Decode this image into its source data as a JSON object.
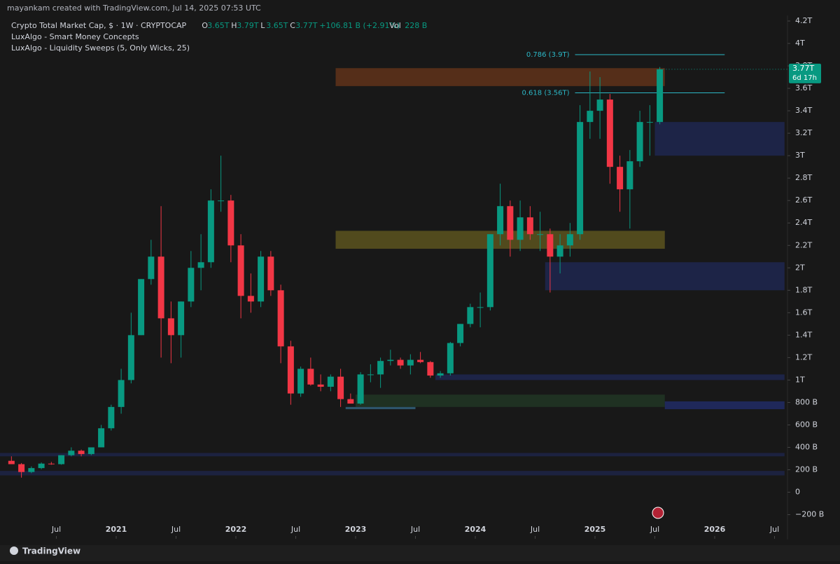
{
  "header": {
    "created": "mayankam created with TradingView.com, Jul 14, 2025 07:53 UTC",
    "symbol": "Crypto Total Market Cap, $ · 1W · CRYPTOCAP",
    "ohlc": [
      {
        "key": "O",
        "value": "3.65T"
      },
      {
        "key": "H",
        "value": "3.79T"
      },
      {
        "key": "L",
        "value": "3.65T"
      },
      {
        "key": "C",
        "value": "3.77T"
      }
    ],
    "change": "+106.81 B (+2.91%)",
    "volume_key": "Vol",
    "volume": "228 B",
    "indicators": [
      "LuxAlgo - Smart Money Concepts",
      "LuxAlgo - Liquidity Sweeps (5, Only Wicks, 25)"
    ]
  },
  "footer": {
    "brand": "TradingView"
  },
  "chart_data": {
    "type": "candlestick",
    "x": [
      "2020-02",
      "2020-03",
      "2020-04",
      "2020-05",
      "2020-06",
      "2020-07",
      "2020-08",
      "2020-09",
      "2020-10",
      "2020-11",
      "2020-12",
      "2021-01",
      "2021-02",
      "2021-03",
      "2021-04",
      "2021-05",
      "2021-06",
      "2021-07",
      "2021-08",
      "2021-09",
      "2021-10",
      "2021-11",
      "2021-12",
      "2022-01",
      "2022-02",
      "2022-03",
      "2022-04",
      "2022-05",
      "2022-06",
      "2022-07",
      "2022-08",
      "2022-09",
      "2022-10",
      "2022-11",
      "2022-12",
      "2023-01",
      "2023-02",
      "2023-03",
      "2023-04",
      "2023-05",
      "2023-06",
      "2023-07",
      "2023-08",
      "2023-09",
      "2023-10",
      "2023-11",
      "2023-12",
      "2024-01",
      "2024-02",
      "2024-03",
      "2024-04",
      "2024-05",
      "2024-06",
      "2024-07",
      "2024-08",
      "2024-09",
      "2024-10",
      "2024-11",
      "2024-12",
      "2025-01",
      "2025-02",
      "2025-03",
      "2025-04",
      "2025-05",
      "2025-06",
      "2025-07"
    ],
    "open": [
      280,
      250,
      180,
      215,
      255,
      250,
      330,
      370,
      340,
      400,
      570,
      760,
      1000,
      1400,
      1900,
      2100,
      1550,
      1400,
      1700,
      2000,
      2050,
      2600,
      2600,
      2200,
      1750,
      1700,
      2100,
      1800,
      1300,
      880,
      1100,
      960,
      940,
      1030,
      830,
      790,
      1050,
      1050,
      1170,
      1180,
      1130,
      1180,
      1160,
      1040,
      1060,
      1330,
      1500,
      1650,
      1650,
      2300,
      2550,
      2250,
      2450,
      2300,
      2300,
      2100,
      2200,
      2300,
      3300,
      3400,
      3500,
      2900,
      2700,
      2950,
      3300,
      3300
    ],
    "high": [
      320,
      260,
      230,
      265,
      270,
      330,
      400,
      380,
      400,
      600,
      780,
      1100,
      1600,
      1900,
      2250,
      2550,
      1700,
      1700,
      2150,
      2300,
      2700,
      3000,
      2650,
      2300,
      1950,
      2150,
      2150,
      1850,
      1350,
      1120,
      1200,
      1050,
      1050,
      1100,
      880,
      1070,
      1140,
      1200,
      1270,
      1200,
      1230,
      1250,
      1170,
      1080,
      1340,
      1500,
      1680,
      1780,
      2300,
      2750,
      2600,
      2600,
      2550,
      2500,
      2350,
      2300,
      2400,
      3450,
      3750,
      3700,
      3550,
      3000,
      3050,
      3400,
      3450,
      3790
    ],
    "low": [
      250,
      130,
      170,
      205,
      245,
      245,
      320,
      320,
      330,
      400,
      550,
      700,
      970,
      1400,
      1850,
      1200,
      1150,
      1200,
      1650,
      1800,
      2000,
      2500,
      2050,
      1550,
      1600,
      1650,
      1750,
      1150,
      780,
      850,
      950,
      900,
      900,
      760,
      790,
      780,
      980,
      930,
      1130,
      1100,
      1050,
      1150,
      1020,
      1020,
      1040,
      1300,
      1470,
      1470,
      1620,
      2200,
      2100,
      2150,
      2250,
      2150,
      1780,
      1950,
      2100,
      2250,
      3150,
      3150,
      2750,
      2500,
      2350,
      2900,
      3000,
      3280
    ],
    "close": [
      250,
      180,
      215,
      255,
      250,
      330,
      370,
      340,
      400,
      570,
      760,
      1000,
      1400,
      1900,
      2100,
      1550,
      1400,
      1700,
      2000,
      2050,
      2600,
      2600,
      2200,
      1750,
      1700,
      2100,
      1800,
      1300,
      880,
      1100,
      960,
      940,
      1030,
      830,
      790,
      1050,
      1050,
      1170,
      1180,
      1130,
      1180,
      1160,
      1040,
      1060,
      1330,
      1500,
      1650,
      1650,
      2300,
      2550,
      2250,
      2450,
      2300,
      2300,
      2100,
      2200,
      2300,
      3300,
      3400,
      3500,
      2900,
      2700,
      2950,
      3300,
      3300,
      3770
    ],
    "up_color": "#089981",
    "down_color": "#f23645",
    "ylim": [
      -390,
      4250
    ],
    "yticks": [
      {
        "value": -200,
        "label": "−200 B"
      },
      0,
      {
        "value": 200,
        "label": "200 B"
      },
      {
        "value": 400,
        "label": "400 B"
      },
      {
        "value": 600,
        "label": "600 B"
      },
      {
        "value": 800,
        "label": "800 B"
      },
      {
        "value": 1000,
        "label": "1T"
      },
      {
        "value": 1200,
        "label": "1.2T"
      },
      {
        "value": 1400,
        "label": "1.4T"
      },
      {
        "value": 1600,
        "label": "1.6T"
      },
      {
        "value": 1800,
        "label": "1.8T"
      },
      {
        "value": 2000,
        "label": "2T"
      },
      {
        "value": 2200,
        "label": "2.2T"
      },
      {
        "value": 2400,
        "label": "2.4T"
      },
      {
        "value": 2600,
        "label": "2.6T"
      },
      {
        "value": 2800,
        "label": "2.8T"
      },
      {
        "value": 3000,
        "label": "3T"
      },
      {
        "value": 3200,
        "label": "3.2T"
      },
      {
        "value": 3400,
        "label": "3.4T"
      },
      {
        "value": 3600,
        "label": "3.6T"
      },
      {
        "value": 3800,
        "label": "3.8T"
      },
      {
        "value": 4000,
        "label": "4T"
      },
      {
        "value": 4200,
        "label": "4.2T"
      }
    ],
    "xticks": [
      {
        "value": "2020-07",
        "label": "Jul"
      },
      {
        "value": "2021-01",
        "label": "2021"
      },
      {
        "value": "2021-07",
        "label": "Jul"
      },
      {
        "value": "2022-01",
        "label": "2022"
      },
      {
        "value": "2022-07",
        "label": "Jul"
      },
      {
        "value": "2023-01",
        "label": "2023"
      },
      {
        "value": "2023-07",
        "label": "Jul"
      },
      {
        "value": "2024-01",
        "label": "2024"
      },
      {
        "value": "2024-07",
        "label": "Jul"
      },
      {
        "value": "2025-01",
        "label": "2025"
      },
      {
        "value": "2025-07",
        "label": "Jul"
      },
      {
        "value": "2026-01",
        "label": "2026"
      },
      {
        "value": "2026-07",
        "label": "Jul"
      }
    ],
    "zones": [
      {
        "from": "2022-11",
        "to": "2025-07",
        "low": 3620,
        "high": 3780,
        "color": "rgba(200,90,30,0.35)"
      },
      {
        "from": "2022-11",
        "to": "2025-07",
        "low": 2170,
        "high": 2330,
        "color": "rgba(190,170,40,0.35)"
      },
      {
        "from": "2025-07",
        "to": "2026-07",
        "low": 3000,
        "high": 3300,
        "color": "rgba(40,60,160,0.35)"
      },
      {
        "from": "2024-08",
        "to": "2026-07",
        "low": 1800,
        "high": 2050,
        "color": "rgba(40,60,160,0.35)"
      },
      {
        "from": "2023-09",
        "to": "2026-07",
        "low": 1000,
        "high": 1050,
        "color": "rgba(40,60,160,0.35)"
      },
      {
        "from": "2023-01",
        "to": "2025-07",
        "low": 760,
        "high": 870,
        "color": "rgba(50,110,60,0.3)"
      },
      {
        "from": "2025-08",
        "to": "2026-07",
        "low": 740,
        "high": 810,
        "color": "rgba(40,60,170,0.45)"
      },
      {
        "from": "2022-12",
        "to": "2023-06",
        "low": 740,
        "high": 760,
        "color": "rgba(70,160,210,0.45)"
      },
      {
        "from": "2020-01",
        "to": "2026-07",
        "low": 320,
        "high": 350,
        "color": "rgba(40,60,160,0.3)"
      },
      {
        "from": "2020-01",
        "to": "2026-07",
        "low": 150,
        "high": 190,
        "color": "rgba(40,60,160,0.3)"
      }
    ],
    "levels": [
      {
        "label": "0.786 (3.9T)",
        "value": 3900,
        "from": "2024-11",
        "to": "2026-02",
        "color": "#2cb7c6"
      },
      {
        "label": "0.618 (3.56T)",
        "value": 3560,
        "from": "2024-11",
        "to": "2026-02",
        "color": "#2cb7c6"
      }
    ],
    "last_price": {
      "label": "3.77T",
      "value": 3770,
      "countdown": "6d 17h"
    }
  }
}
